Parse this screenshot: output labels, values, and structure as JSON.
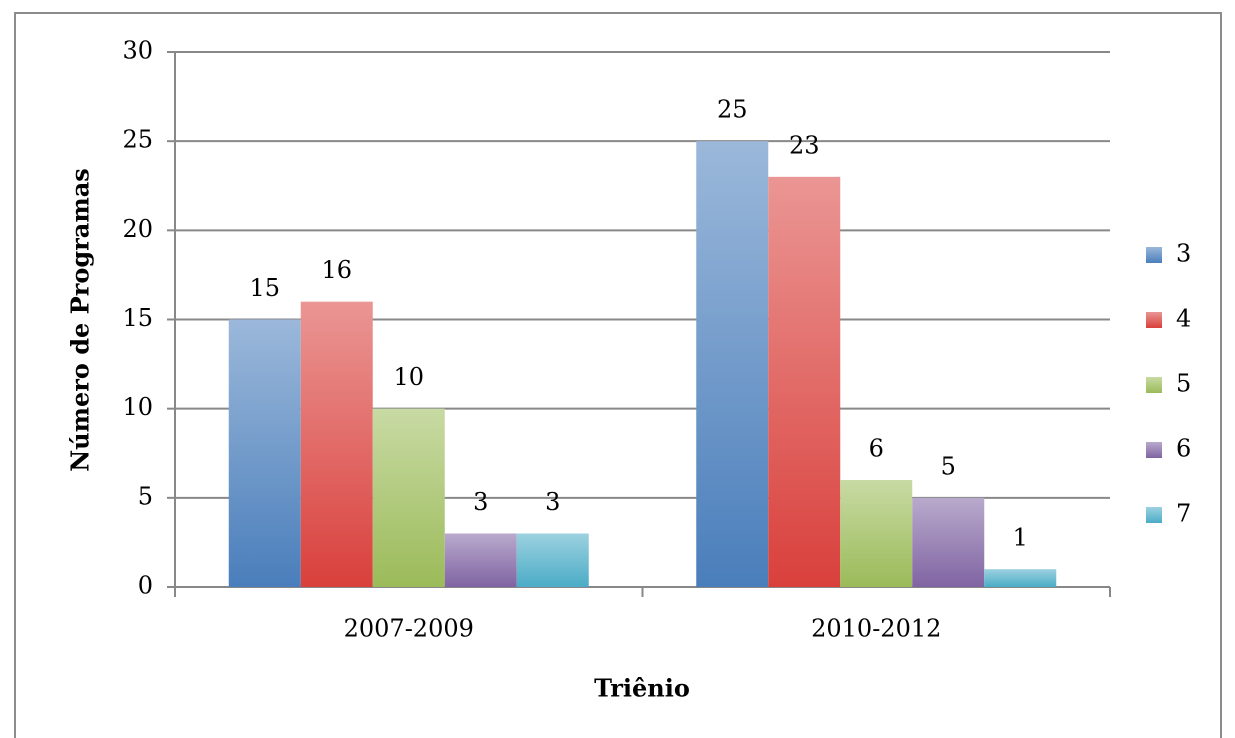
{
  "chart_data": {
    "type": "bar",
    "categories": [
      "2007-2009",
      "2010-2012"
    ],
    "series": [
      {
        "name": "3",
        "color": "#4a7ebb",
        "values": [
          15,
          25
        ]
      },
      {
        "name": "4",
        "color": "#d9403c",
        "values": [
          16,
          23
        ]
      },
      {
        "name": "5",
        "color": "#9bbb59",
        "values": [
          10,
          6
        ]
      },
      {
        "name": "6",
        "color": "#8064a2",
        "values": [
          3,
          5
        ]
      },
      {
        "name": "7",
        "color": "#4bacc6",
        "values": [
          3,
          1
        ]
      }
    ],
    "ylim": [
      0,
      30
    ],
    "yticks": [
      0,
      5,
      10,
      15,
      20,
      25,
      30
    ],
    "grid": true,
    "ylabel": "Número de Programas",
    "xlabel": "Triênio",
    "legend": "right"
  }
}
